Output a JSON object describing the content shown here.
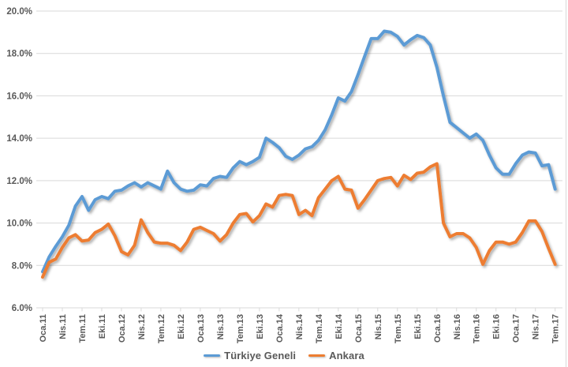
{
  "chart": {
    "background": "#FFFFFF",
    "grid_color": "#D9D9D9",
    "text_color": "#595959"
  },
  "chart_data": {
    "type": "line",
    "title": "",
    "grid": true,
    "legend_position": "bottom",
    "x_unit": "month",
    "x_start_label": "Oca.11",
    "x_end_label": "Tem.17",
    "y_axis": {
      "min": 6,
      "max": 20,
      "step": 2,
      "tick_labels": [
        "6.0%",
        "8.0%",
        "10.0%",
        "12.0%",
        "14.0%",
        "16.0%",
        "18.0%",
        "20.0%"
      ]
    },
    "x_axis": {
      "months_per_tick": 3,
      "tick_labels": [
        "Oca.11",
        "Nis.11",
        "Tem.11",
        "Eki.11",
        "Oca.12",
        "Nis.12",
        "Tem.12",
        "Eki.12",
        "Oca.13",
        "Nis.13",
        "Tem.13",
        "Eki.13",
        "Oca.14",
        "Nis.14",
        "Tem.14",
        "Eki.14",
        "Oca.15",
        "Nis.15",
        "Tem.15",
        "Eki.15",
        "Oca.16",
        "Nis.16",
        "Tem.16",
        "Eki.16",
        "Oca.17",
        "Nis.17",
        "Tem.17"
      ]
    },
    "series": [
      {
        "name": "Türkiye Geneli",
        "color": "#5B9BD5",
        "values": [
          7.7,
          8.4,
          8.9,
          9.35,
          9.9,
          10.8,
          11.25,
          10.6,
          11.1,
          11.25,
          11.15,
          11.5,
          11.55,
          11.75,
          11.9,
          11.7,
          11.9,
          11.75,
          11.6,
          12.45,
          11.9,
          11.6,
          11.5,
          11.55,
          11.8,
          11.75,
          12.1,
          12.2,
          12.15,
          12.6,
          12.9,
          12.75,
          12.9,
          13.1,
          14.0,
          13.8,
          13.55,
          13.15,
          13.0,
          13.2,
          13.5,
          13.6,
          13.9,
          14.4,
          15.1,
          15.9,
          15.75,
          16.2,
          17.0,
          17.85,
          18.7,
          18.7,
          19.05,
          19.0,
          18.8,
          18.4,
          18.65,
          18.85,
          18.75,
          18.4,
          17.35,
          16.0,
          14.75,
          14.5,
          14.25,
          14.0,
          14.2,
          13.9,
          13.2,
          12.6,
          12.3,
          12.3,
          12.8,
          13.2,
          13.35,
          13.3,
          12.7,
          12.75,
          11.6
        ]
      },
      {
        "name": "Ankara",
        "color": "#ED7D31",
        "values": [
          7.45,
          8.15,
          8.3,
          8.85,
          9.3,
          9.45,
          9.15,
          9.2,
          9.55,
          9.7,
          9.95,
          9.4,
          8.65,
          8.5,
          8.95,
          10.15,
          9.55,
          9.1,
          9.05,
          9.05,
          8.95,
          8.7,
          9.1,
          9.7,
          9.8,
          9.65,
          9.5,
          9.15,
          9.45,
          10.0,
          10.4,
          10.45,
          10.05,
          10.35,
          10.9,
          10.75,
          11.3,
          11.35,
          11.3,
          10.4,
          10.6,
          10.35,
          11.2,
          11.6,
          12.0,
          12.2,
          11.6,
          11.55,
          10.7,
          11.1,
          11.55,
          12.0,
          12.1,
          12.15,
          11.75,
          12.25,
          12.05,
          12.35,
          12.4,
          12.65,
          12.8,
          10.0,
          9.35,
          9.5,
          9.5,
          9.3,
          8.85,
          8.05,
          8.7,
          9.1,
          9.1,
          9.0,
          9.1,
          9.55,
          10.1,
          10.1,
          9.6,
          8.8,
          8.05
        ]
      }
    ]
  }
}
